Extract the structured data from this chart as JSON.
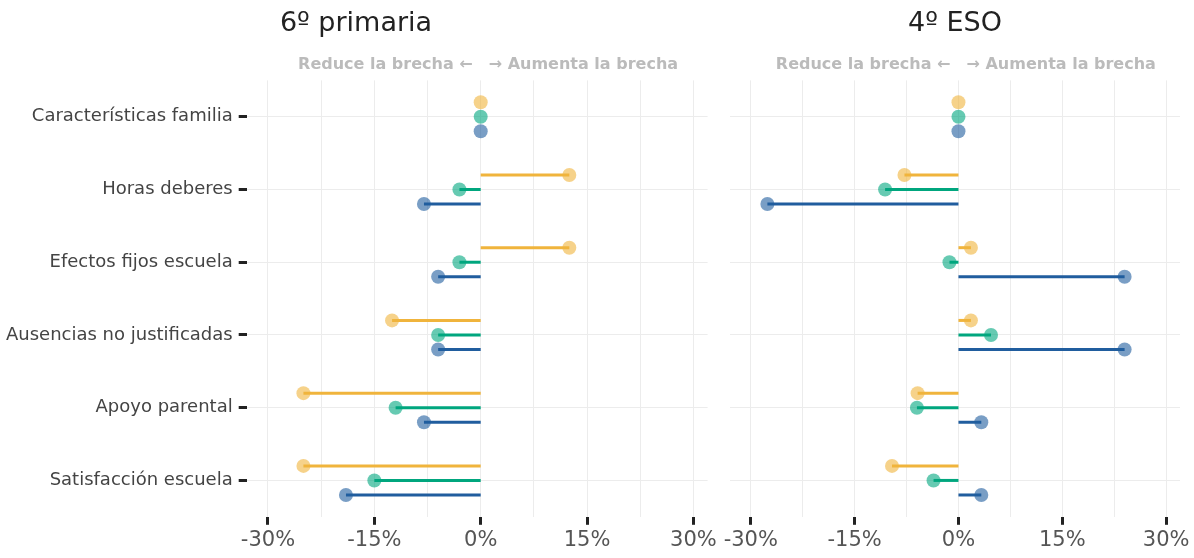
{
  "chart_data": [
    {
      "type": "lollipop",
      "orientation": "horizontal",
      "title": "6º primaria",
      "categories": [
        "Características familia",
        "Horas deberes",
        "Efectos fijos escuela",
        "Ausencias no justificadas",
        "Apoyo parental",
        "Satisfacción escuela"
      ],
      "series": [
        {
          "color": "#f0b43c",
          "values": [
            0,
            12.5,
            12.5,
            -12.5,
            -25,
            -25
          ]
        },
        {
          "color": "#00a67e",
          "values": [
            0,
            -3,
            -3,
            -6,
            -12,
            -15
          ]
        },
        {
          "color": "#205d9e",
          "values": [
            0,
            -8,
            -6,
            -6,
            -8,
            -19
          ]
        }
      ],
      "xlim": [
        -33,
        32
      ],
      "xticks": [
        {
          "value": -30,
          "label": "-30%"
        },
        {
          "value": -22.5,
          "label": null
        },
        {
          "value": -15,
          "label": "-15%"
        },
        {
          "value": -7.5,
          "label": null
        },
        {
          "value": 0,
          "label": "0%"
        },
        {
          "value": 7.5,
          "label": null
        },
        {
          "value": 15,
          "label": "15%"
        },
        {
          "value": 22.5,
          "label": null
        },
        {
          "value": 30,
          "label": "30%"
        }
      ],
      "annotations": [
        "Reduce la brecha ←",
        "→ Aumenta la brecha"
      ],
      "grid": true,
      "legend": false,
      "marker": "circle",
      "line_style": "solid"
    },
    {
      "type": "lollipop",
      "orientation": "horizontal",
      "title": "4º ESO",
      "categories": [
        null,
        null,
        null,
        null,
        null,
        null
      ],
      "series": [
        {
          "color": "#f0b43c",
          "values": [
            0,
            -7.8,
            1.8,
            1.8,
            -5.9,
            -9.6
          ]
        },
        {
          "color": "#00a67e",
          "values": [
            0,
            -10.6,
            -1.3,
            4.7,
            -6,
            -3.6
          ]
        },
        {
          "color": "#205d9e",
          "values": [
            0,
            -27.6,
            24,
            24,
            3.3,
            3.3
          ]
        }
      ],
      "xlim": [
        -33,
        32
      ],
      "xticks": [
        {
          "value": -30,
          "label": "-30%"
        },
        {
          "value": -22.5,
          "label": null
        },
        {
          "value": -15,
          "label": "-15%"
        },
        {
          "value": -7.5,
          "label": null
        },
        {
          "value": 0,
          "label": "0%"
        },
        {
          "value": 7.5,
          "label": null
        },
        {
          "value": 15,
          "label": "15%"
        },
        {
          "value": 22.5,
          "label": null
        },
        {
          "value": 30,
          "label": "30%"
        }
      ],
      "annotations": [
        "Reduce la brecha ←",
        "→ Aumenta la brecha"
      ],
      "tick_labels": "x",
      "grid": true,
      "legend": false,
      "marker": "circle",
      "line_style": "solid"
    }
  ]
}
